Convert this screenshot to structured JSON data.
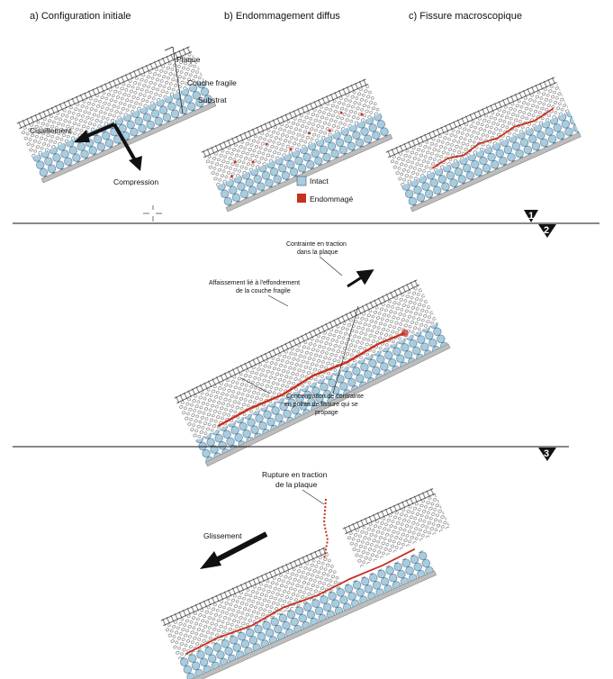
{
  "panels": {
    "a_title": "a) Configuration initiale",
    "b_title": "b) Endommagement diffus",
    "c_title": "c) Fissure macroscopique"
  },
  "layers": {
    "plate": "Plaque",
    "fragile": "Couche fragile",
    "substrate": "Substrat"
  },
  "forces": {
    "shear": "Cisaillement",
    "compression": "Compression"
  },
  "legend": {
    "intact": "Intact",
    "damaged": "Endommagé",
    "intact_color": "#a9cde0",
    "damaged_color": "#c8301e"
  },
  "stage2": {
    "traction_line1": "Contrainte en traction",
    "traction_line2": "dans la plaque",
    "collapse_line1": "Affaissement lié à l'effondrement",
    "collapse_line2": "de la couche fragile",
    "conc_line1": "Concentration de contrainte",
    "conc_line2": "en pointe de fissure qui se",
    "conc_line3": "propage"
  },
  "stage3": {
    "rupture_line1": "Rupture en traction",
    "rupture_line2": "de la plaque",
    "slide": "Glissement"
  },
  "stages": {
    "s1": "1",
    "s2": "2",
    "s3": "3"
  }
}
